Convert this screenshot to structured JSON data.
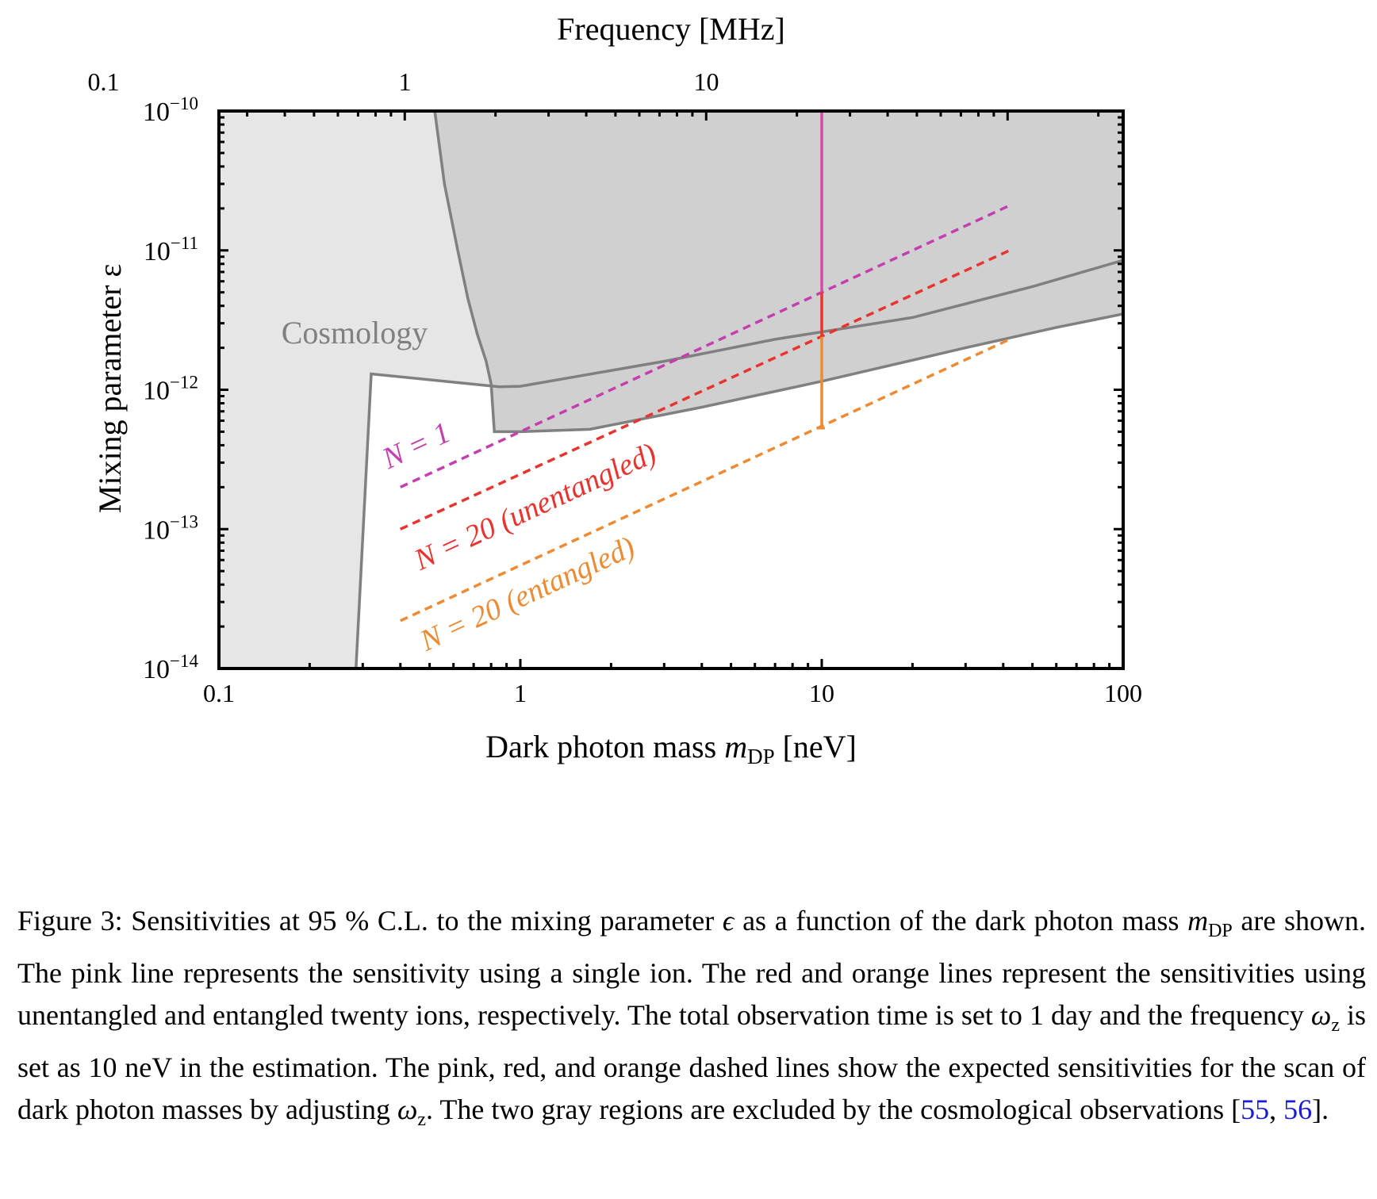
{
  "chart_data": {
    "type": "line",
    "top_axis_label": "Frequency [MHz]",
    "top_ticks": [
      "0.1",
      "1",
      "10"
    ],
    "top_tick_values_neV": [
      0.0414,
      0.414,
      4.14
    ],
    "xlabel_prefix": "Dark photon mass ",
    "xlabel_var": "m",
    "xlabel_sub": "DP",
    "xlabel_suffix": " [neV]",
    "ylabel": "Mixing parameter ε",
    "xscale": "log",
    "yscale": "log",
    "xlim": [
      0.1,
      100
    ],
    "ylim": [
      1e-14,
      1e-10
    ],
    "x_ticks": [
      "0.1",
      "1",
      "10",
      "100"
    ],
    "x_tick_values": [
      0.1,
      1,
      10,
      100
    ],
    "y_tick_values": [
      1e-14,
      1e-13,
      1e-12,
      1e-11,
      1e-10
    ],
    "y_tick_base": "10",
    "y_tick_exponents": [
      "−14",
      "−13",
      "−12",
      "−11",
      "−10"
    ],
    "region_label": "Cosmology",
    "regions": [
      {
        "name": "cosmology-light",
        "color": "#e6e6e6",
        "boundary": [
          [
            0.285,
            1e-14
          ],
          [
            0.32,
            1.3e-12
          ],
          [
            0.85,
            1.05e-12
          ],
          [
            1.0,
            1.06e-12
          ],
          [
            3.0,
            1.6e-12
          ],
          [
            7.0,
            2.3e-12
          ],
          [
            20.0,
            3.3e-12
          ],
          [
            50.0,
            5.5e-12
          ],
          [
            100.0,
            8.5e-12
          ]
        ]
      },
      {
        "name": "cosmology-dark",
        "color": "#d0d0d0",
        "boundary": [
          [
            0.52,
            1e-10
          ],
          [
            0.56,
            3e-11
          ],
          [
            0.62,
            1e-11
          ],
          [
            0.67,
            4.5e-12
          ],
          [
            0.72,
            2.5e-12
          ],
          [
            0.77,
            1.6e-12
          ],
          [
            0.8,
            1.1e-12
          ],
          [
            0.82,
            5e-13
          ],
          [
            1.0,
            5e-13
          ],
          [
            1.7,
            5.2e-13
          ],
          [
            4.0,
            7.5e-13
          ],
          [
            10.0,
            1.15e-12
          ],
          [
            30.0,
            2e-12
          ],
          [
            60.0,
            2.8e-12
          ],
          [
            100.0,
            3.5e-12
          ]
        ]
      }
    ],
    "series": [
      {
        "name": "N = 1",
        "color": "#c43eb0",
        "style": "dashed",
        "x": [
          0.4,
          42
        ],
        "y": [
          2e-13,
          2.1e-11
        ]
      },
      {
        "name": "N = 20 (unentangled)",
        "color": "#e8332e",
        "style": "dashed",
        "x": [
          0.4,
          42
        ],
        "y": [
          1e-13,
          1e-11
        ]
      },
      {
        "name": "N = 20 (entangled)",
        "color": "#ee8a32",
        "style": "dashed",
        "x": [
          0.4,
          42
        ],
        "y": [
          2.2e-14,
          2.3e-12
        ]
      }
    ],
    "vertical_segments": [
      {
        "name": "pink",
        "color": "#d44aa6",
        "x": 10,
        "y": [
          5e-12,
          1e-10
        ]
      },
      {
        "name": "red",
        "color": "#e8332e",
        "x": 10,
        "y": [
          2.4e-12,
          5e-12
        ]
      },
      {
        "name": "orange",
        "color": "#ee8a32",
        "x": 10,
        "y": [
          5.3e-13,
          2.4e-12
        ]
      }
    ],
    "series_labels": [
      "N = 1",
      "N = 20 (unentangled)",
      "N = 20 (entangled)"
    ]
  },
  "caption": {
    "lead": "Figure 3: Sensitivities at 95 % C.L. to the mixing parameter ",
    "eps": "ϵ",
    "part2": " as a function of the dark photon mass ",
    "m": "m",
    "m_sub": "DP",
    "part3": " are shown. The pink line represents the sensitivity using a single ion. The red and orange lines represent the sensitivities using unentangled and entangled twenty ions, respectively. The total observation time is set to 1 day and the frequency ",
    "omega": "ω",
    "omega_sub": "z",
    "part4": " is set as 10 neV in the estimation. The pink, red, and orange dashed lines show the expected sensitivities for the scan of dark photon masses by adjusting ",
    "part5": ". The two gray regions are excluded by the cosmological observations [",
    "ref1": "55",
    "comma": ", ",
    "ref2": "56",
    "end": "]."
  }
}
